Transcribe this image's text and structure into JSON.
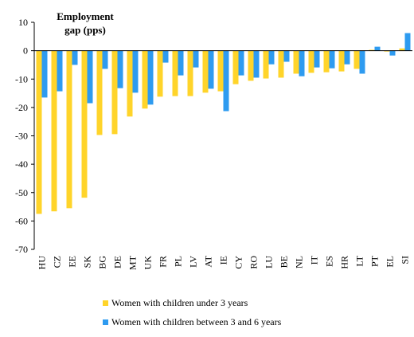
{
  "chart_data": {
    "type": "bar",
    "title": "Employment gap (pps)",
    "categories": [
      "HU",
      "CZ",
      "EE",
      "SK",
      "BG",
      "DE",
      "MT",
      "UK",
      "FR",
      "PL",
      "LV",
      "AT",
      "IE",
      "CY",
      "RO",
      "LU",
      "BE",
      "NL",
      "IT",
      "ES",
      "HR",
      "LT",
      "PT",
      "EL",
      "SI"
    ],
    "series": [
      {
        "name": "Women with children under 3 years",
        "color": "#ffd42a",
        "values": [
          -57.5,
          -56.6,
          -55.5,
          -51.8,
          -29.7,
          -29.4,
          -23.2,
          -20.4,
          -16.2,
          -16,
          -16,
          -14.8,
          -14.3,
          -11.8,
          -10.6,
          -9.8,
          -9.5,
          -8.1,
          -7.8,
          -7.6,
          -7.3,
          -6.4,
          0.3,
          -0.3,
          0.8
        ]
      },
      {
        "name": "Women with children between 3 and 6 years",
        "color": "#2e9bf0",
        "values": [
          -16.5,
          -14.3,
          -5,
          -18.5,
          -6.4,
          -13.2,
          -14.8,
          -19,
          -4.2,
          -8.7,
          -5.9,
          -13.4,
          -21.3,
          -8.7,
          -9.5,
          -4.8,
          -3.9,
          -9,
          -5.9,
          -6.2,
          -4.8,
          -8.1,
          1.4,
          -1.7,
          6.2
        ]
      }
    ],
    "ylim": [
      -70,
      10
    ],
    "yticks": [
      -70,
      -60,
      -50,
      -40,
      -30,
      -20,
      -10,
      0,
      10
    ]
  }
}
